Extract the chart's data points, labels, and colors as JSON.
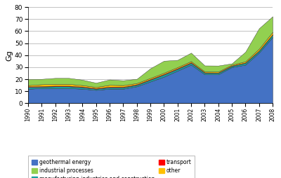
{
  "years": [
    1990,
    1991,
    1992,
    1993,
    1994,
    1995,
    1996,
    1997,
    1998,
    1999,
    2000,
    2001,
    2002,
    2003,
    2004,
    2005,
    2006,
    2007,
    2008
  ],
  "geothermal": [
    12,
    12.5,
    12.5,
    12.5,
    12,
    11,
    12,
    12,
    14,
    18,
    22,
    27,
    32,
    24,
    24,
    30,
    32,
    42,
    55
  ],
  "industrial": [
    5,
    4.5,
    5,
    5,
    4.5,
    3.5,
    4.5,
    4,
    3.5,
    8,
    10,
    6,
    7,
    5,
    5,
    1,
    8,
    17,
    13
  ],
  "manufacturing": [
    1.5,
    1.2,
    1.5,
    1.5,
    1.3,
    1.0,
    1.2,
    1.2,
    1.2,
    1.5,
    1.8,
    1.5,
    1.5,
    1.3,
    1.2,
    1.0,
    1.5,
    1.5,
    2.0
  ],
  "transport": [
    0.5,
    0.5,
    0.5,
    0.5,
    0.5,
    0.5,
    0.5,
    0.5,
    0.5,
    0.5,
    0.5,
    0.5,
    0.5,
    0.3,
    0.3,
    0.3,
    0.3,
    0.3,
    0.3
  ],
  "other": [
    1.0,
    1.5,
    1.5,
    1.5,
    1.2,
    1.0,
    1.5,
    1.3,
    1.0,
    1.0,
    1.0,
    1.0,
    1.0,
    0.8,
    0.8,
    0.8,
    1.0,
    1.5,
    2.0
  ],
  "colors": {
    "geothermal": "#4472C4",
    "industrial": "#92D050",
    "manufacturing": "#17A0A0",
    "transport": "#FF0000",
    "other": "#FFC000"
  },
  "ylabel": "Gg",
  "ylim": [
    0,
    80
  ],
  "yticks": [
    0,
    10,
    20,
    30,
    40,
    50,
    60,
    70,
    80
  ],
  "background_color": "#FFFFFF"
}
